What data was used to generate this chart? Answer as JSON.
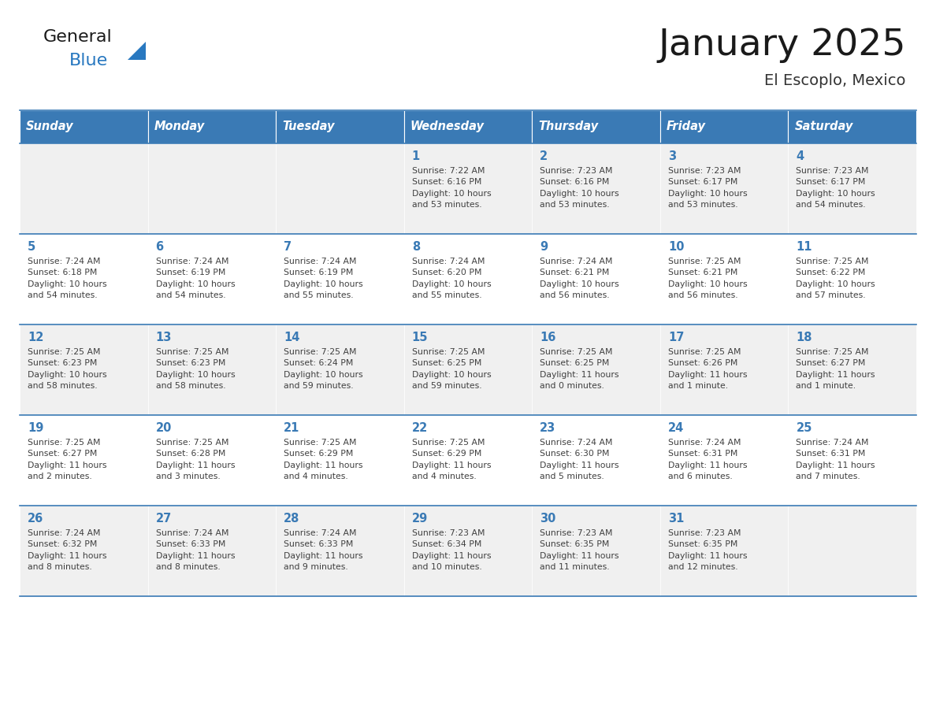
{
  "title": "January 2025",
  "subtitle": "El Escoplo, Mexico",
  "logo_general": "General",
  "logo_blue": "Blue",
  "days_of_week": [
    "Sunday",
    "Monday",
    "Tuesday",
    "Wednesday",
    "Thursday",
    "Friday",
    "Saturday"
  ],
  "header_bg": "#3a7ab5",
  "header_text": "#ffffff",
  "row_bg_odd": "#f0f0f0",
  "row_bg_even": "#ffffff",
  "day_number_color": "#3a7ab5",
  "text_color": "#404040",
  "border_color": "#3a7ab5",
  "title_color": "#1a1a1a",
  "subtitle_color": "#333333",
  "logo_general_color": "#1a1a1a",
  "logo_blue_color": "#2878c0",
  "triangle_color": "#2878c0",
  "calendar": [
    [
      {
        "day": null,
        "info": null
      },
      {
        "day": null,
        "info": null
      },
      {
        "day": null,
        "info": null
      },
      {
        "day": 1,
        "info": "Sunrise: 7:22 AM\nSunset: 6:16 PM\nDaylight: 10 hours\nand 53 minutes."
      },
      {
        "day": 2,
        "info": "Sunrise: 7:23 AM\nSunset: 6:16 PM\nDaylight: 10 hours\nand 53 minutes."
      },
      {
        "day": 3,
        "info": "Sunrise: 7:23 AM\nSunset: 6:17 PM\nDaylight: 10 hours\nand 53 minutes."
      },
      {
        "day": 4,
        "info": "Sunrise: 7:23 AM\nSunset: 6:17 PM\nDaylight: 10 hours\nand 54 minutes."
      }
    ],
    [
      {
        "day": 5,
        "info": "Sunrise: 7:24 AM\nSunset: 6:18 PM\nDaylight: 10 hours\nand 54 minutes."
      },
      {
        "day": 6,
        "info": "Sunrise: 7:24 AM\nSunset: 6:19 PM\nDaylight: 10 hours\nand 54 minutes."
      },
      {
        "day": 7,
        "info": "Sunrise: 7:24 AM\nSunset: 6:19 PM\nDaylight: 10 hours\nand 55 minutes."
      },
      {
        "day": 8,
        "info": "Sunrise: 7:24 AM\nSunset: 6:20 PM\nDaylight: 10 hours\nand 55 minutes."
      },
      {
        "day": 9,
        "info": "Sunrise: 7:24 AM\nSunset: 6:21 PM\nDaylight: 10 hours\nand 56 minutes."
      },
      {
        "day": 10,
        "info": "Sunrise: 7:25 AM\nSunset: 6:21 PM\nDaylight: 10 hours\nand 56 minutes."
      },
      {
        "day": 11,
        "info": "Sunrise: 7:25 AM\nSunset: 6:22 PM\nDaylight: 10 hours\nand 57 minutes."
      }
    ],
    [
      {
        "day": 12,
        "info": "Sunrise: 7:25 AM\nSunset: 6:23 PM\nDaylight: 10 hours\nand 58 minutes."
      },
      {
        "day": 13,
        "info": "Sunrise: 7:25 AM\nSunset: 6:23 PM\nDaylight: 10 hours\nand 58 minutes."
      },
      {
        "day": 14,
        "info": "Sunrise: 7:25 AM\nSunset: 6:24 PM\nDaylight: 10 hours\nand 59 minutes."
      },
      {
        "day": 15,
        "info": "Sunrise: 7:25 AM\nSunset: 6:25 PM\nDaylight: 10 hours\nand 59 minutes."
      },
      {
        "day": 16,
        "info": "Sunrise: 7:25 AM\nSunset: 6:25 PM\nDaylight: 11 hours\nand 0 minutes."
      },
      {
        "day": 17,
        "info": "Sunrise: 7:25 AM\nSunset: 6:26 PM\nDaylight: 11 hours\nand 1 minute."
      },
      {
        "day": 18,
        "info": "Sunrise: 7:25 AM\nSunset: 6:27 PM\nDaylight: 11 hours\nand 1 minute."
      }
    ],
    [
      {
        "day": 19,
        "info": "Sunrise: 7:25 AM\nSunset: 6:27 PM\nDaylight: 11 hours\nand 2 minutes."
      },
      {
        "day": 20,
        "info": "Sunrise: 7:25 AM\nSunset: 6:28 PM\nDaylight: 11 hours\nand 3 minutes."
      },
      {
        "day": 21,
        "info": "Sunrise: 7:25 AM\nSunset: 6:29 PM\nDaylight: 11 hours\nand 4 minutes."
      },
      {
        "day": 22,
        "info": "Sunrise: 7:25 AM\nSunset: 6:29 PM\nDaylight: 11 hours\nand 4 minutes."
      },
      {
        "day": 23,
        "info": "Sunrise: 7:24 AM\nSunset: 6:30 PM\nDaylight: 11 hours\nand 5 minutes."
      },
      {
        "day": 24,
        "info": "Sunrise: 7:24 AM\nSunset: 6:31 PM\nDaylight: 11 hours\nand 6 minutes."
      },
      {
        "day": 25,
        "info": "Sunrise: 7:24 AM\nSunset: 6:31 PM\nDaylight: 11 hours\nand 7 minutes."
      }
    ],
    [
      {
        "day": 26,
        "info": "Sunrise: 7:24 AM\nSunset: 6:32 PM\nDaylight: 11 hours\nand 8 minutes."
      },
      {
        "day": 27,
        "info": "Sunrise: 7:24 AM\nSunset: 6:33 PM\nDaylight: 11 hours\nand 8 minutes."
      },
      {
        "day": 28,
        "info": "Sunrise: 7:24 AM\nSunset: 6:33 PM\nDaylight: 11 hours\nand 9 minutes."
      },
      {
        "day": 29,
        "info": "Sunrise: 7:23 AM\nSunset: 6:34 PM\nDaylight: 11 hours\nand 10 minutes."
      },
      {
        "day": 30,
        "info": "Sunrise: 7:23 AM\nSunset: 6:35 PM\nDaylight: 11 hours\nand 11 minutes."
      },
      {
        "day": 31,
        "info": "Sunrise: 7:23 AM\nSunset: 6:35 PM\nDaylight: 11 hours\nand 12 minutes."
      },
      {
        "day": null,
        "info": null
      }
    ]
  ]
}
